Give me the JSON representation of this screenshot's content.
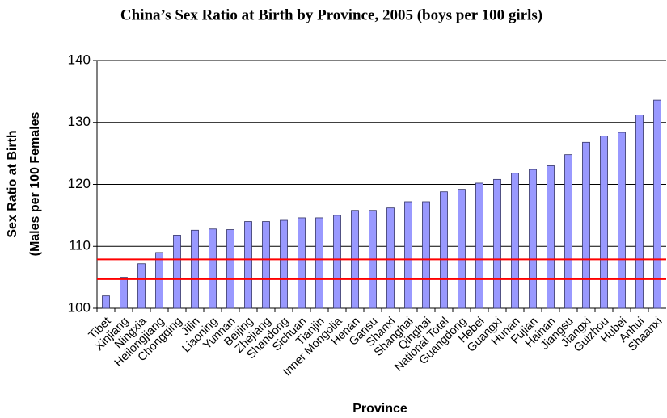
{
  "chart_data": {
    "type": "bar",
    "title": "China’s Sex Ratio at Birth by Province, 2005 (boys per 100 girls)",
    "xlabel": "Province",
    "ylabel": [
      "Sex Ratio at Birth",
      "(Males per 100 Females"
    ],
    "categories": [
      "Tibet",
      "Xinjiang",
      "Ningxia",
      "Heilongjiang",
      "Chongqing",
      "Jilin",
      "Liaoning",
      "Yunnan",
      "Beijing",
      "Zhejiang",
      "Shandong",
      "Sichuan",
      "Tianjin",
      "Inner Mongolia",
      "Henan",
      "Gansu",
      "Shanxi",
      "Shanghai",
      "Qinghai",
      "National Total",
      "Guangdong",
      "Hebei",
      "Guangxi",
      "Hunan",
      "Fujian",
      "Hainan",
      "Jiangsu",
      "Jiangxi",
      "Guizhou",
      "Hubei",
      "Anhui",
      "Shaanxi"
    ],
    "values": [
      102,
      105,
      107.2,
      109,
      111.8,
      112.6,
      112.8,
      112.7,
      114,
      114,
      114.2,
      114.6,
      114.6,
      115,
      115.8,
      115.8,
      116.2,
      117.2,
      117.2,
      118.8,
      119.2,
      120.2,
      120.8,
      121.8,
      122.4,
      123,
      124.8,
      126.8,
      127.8,
      128.4,
      131.2,
      133.6
    ],
    "color": "#9999ff",
    "ylim": [
      100,
      140
    ],
    "yticks": [
      100,
      110,
      120,
      130,
      140
    ],
    "grid": true,
    "reference_lines": {
      "values": [
        104.7,
        107.9
      ],
      "color": "#ff0000"
    }
  }
}
